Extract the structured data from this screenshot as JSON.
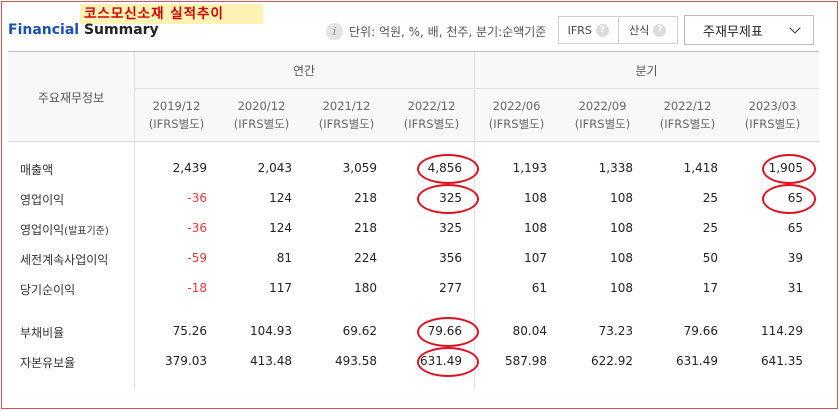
{
  "page": {
    "annotation_title": "코스모신소재 실적추이",
    "brand_part1": "Financial",
    "brand_part2": " Summary"
  },
  "unit_note": "단위: 억원, %, 배, 천주, 분기:순액기준",
  "toggles": [
    {
      "label": "IFRS"
    },
    {
      "label": "산식"
    }
  ],
  "select": {
    "value": "주재무제표"
  },
  "table": {
    "row_header": "주요재무정보",
    "groups": [
      "연간",
      "분기"
    ],
    "columns": [
      {
        "period": "2019/12",
        "basis": "(IFRS별도)"
      },
      {
        "period": "2020/12",
        "basis": "(IFRS별도)"
      },
      {
        "period": "2021/12",
        "basis": "(IFRS별도)"
      },
      {
        "period": "2022/12",
        "basis": "(IFRS별도)"
      },
      {
        "period": "2022/06",
        "basis": "(IFRS별도)"
      },
      {
        "period": "2022/09",
        "basis": "(IFRS별도)"
      },
      {
        "period": "2022/12",
        "basis": "(IFRS별도)"
      },
      {
        "period": "2023/03",
        "basis": "(IFRS별도)"
      }
    ],
    "rows": [
      {
        "label": "매출액",
        "label_note": "",
        "values": [
          "2,439",
          "2,043",
          "3,059",
          "4,856",
          "1,193",
          "1,338",
          "1,418",
          "1,905"
        ],
        "negative": [
          false,
          false,
          false,
          false,
          false,
          false,
          false,
          false
        ]
      },
      {
        "label": "영업이익",
        "label_note": "",
        "values": [
          "-36",
          "124",
          "218",
          "325",
          "108",
          "108",
          "25",
          "65"
        ],
        "negative": [
          true,
          false,
          false,
          false,
          false,
          false,
          false,
          false
        ]
      },
      {
        "label": "영업이익",
        "label_note": "(발표기준)",
        "values": [
          "-36",
          "124",
          "218",
          "325",
          "108",
          "108",
          "25",
          "65"
        ],
        "negative": [
          true,
          false,
          false,
          false,
          false,
          false,
          false,
          false
        ]
      },
      {
        "label": "세전계속사업이익",
        "label_note": "",
        "values": [
          "-59",
          "81",
          "224",
          "356",
          "107",
          "108",
          "50",
          "39"
        ],
        "negative": [
          true,
          false,
          false,
          false,
          false,
          false,
          false,
          false
        ]
      },
      {
        "label": "당기순이익",
        "label_note": "",
        "values": [
          "-18",
          "117",
          "180",
          "277",
          "61",
          "108",
          "17",
          "31"
        ],
        "negative": [
          true,
          false,
          false,
          false,
          false,
          false,
          false,
          false
        ]
      },
      {
        "label": "부채비율",
        "label_note": "",
        "values": [
          "75.26",
          "104.93",
          "69.62",
          "79.66",
          "80.04",
          "73.23",
          "79.66",
          "114.29"
        ],
        "negative": [
          false,
          false,
          false,
          false,
          false,
          false,
          false,
          false
        ]
      },
      {
        "label": "자본유보율",
        "label_note": "",
        "values": [
          "379.03",
          "413.48",
          "493.58",
          "631.49",
          "587.98",
          "622.92",
          "631.49",
          "641.35"
        ],
        "negative": [
          false,
          false,
          false,
          false,
          false,
          false,
          false,
          false
        ]
      }
    ]
  },
  "annotations": {
    "color": "#e01020",
    "circled_cells": [
      {
        "row": 0,
        "col": 3
      },
      {
        "row": 1,
        "col": 3
      },
      {
        "row": 5,
        "col": 3
      },
      {
        "row": 6,
        "col": 3
      },
      {
        "row": 0,
        "col": 7
      },
      {
        "row": 1,
        "col": 7
      }
    ]
  }
}
